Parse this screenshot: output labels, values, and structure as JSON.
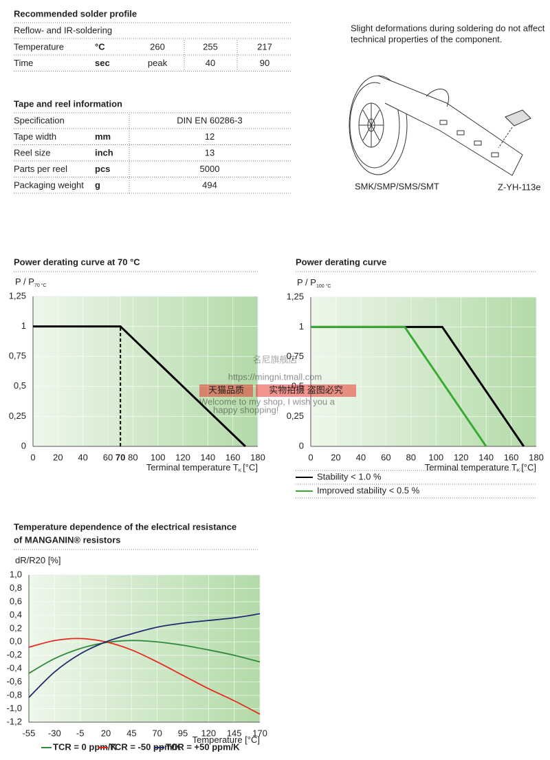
{
  "solder_profile": {
    "title": "Recommended solder profile",
    "subtitle": "Reflow- and IR-soldering",
    "rows": [
      [
        "Temperature",
        "°C",
        260,
        255,
        217
      ],
      [
        "Time",
        "sec",
        "peak",
        40,
        90
      ]
    ]
  },
  "tape_reel": {
    "title": "Tape and reel information",
    "rows": [
      {
        "label": "Specification",
        "value": "DIN EN 60286-3"
      },
      {
        "label": "Tape width",
        "unit": "mm",
        "value": 12
      },
      {
        "label": "Reel size",
        "unit": "inch",
        "value": 13
      },
      {
        "label": "Parts per reel",
        "unit": "pcs",
        "value": 5000
      },
      {
        "label": "Packaging weight",
        "unit": "g",
        "value": 494
      }
    ]
  },
  "reel_note": [
    "Slight deformations during soldering do not affect",
    "technical properties of the component."
  ],
  "reel_labels": [
    "SMK/SMP/SMS/SMT",
    "Z-YH-113e"
  ],
  "watermark": {
    "shop": "名尼旗舰店",
    "url": "https://mingni.tmall.com",
    "badge": "天猫品质",
    "notice": "实物拍摄 盗图必究",
    "welcome": [
      "Welcome to my shop, I wish you a",
      "happy shopping!"
    ]
  },
  "chart_data": [
    {
      "type": "line",
      "title": [
        "Power derating curve at 70 °C"
      ],
      "y_label": "P / P",
      "y_label_sub": "70 °C",
      "x_label": "Terminal temperature T",
      "x_label_sub": "K",
      "x_label_unit": "[°C]",
      "xlim": [
        0,
        180
      ],
      "xticks": [
        0,
        20,
        40,
        60,
        70,
        80,
        100,
        120,
        140,
        160,
        180
      ],
      "highlight_x": 70,
      "ylim": [
        0,
        1.25
      ],
      "yticks": [
        0,
        {
          "value": 0.25,
          "label": "0,25"
        },
        {
          "value": 0.5,
          "label": "0,5"
        },
        {
          "value": 0.75,
          "label": "0,75"
        },
        1,
        {
          "value": 1.25,
          "label": "1,25"
        }
      ],
      "grid": true,
      "series": [
        {
          "color": "#000000",
          "x": [
            0,
            70,
            170
          ],
          "values": [
            1,
            1,
            0
          ]
        }
      ]
    },
    {
      "type": "line",
      "title": [
        "Power derating curve"
      ],
      "y_label": "P / P",
      "y_label_sub": "100 °C",
      "x_label": "Terminal temperature T",
      "x_label_sub": "K",
      "x_label_unit": "[°C]",
      "xlim": [
        0,
        180
      ],
      "xticks": [
        0,
        20,
        40,
        60,
        80,
        100,
        120,
        140,
        160,
        180
      ],
      "ylim": [
        0,
        1.25
      ],
      "yticks": [
        0,
        {
          "value": 0.25,
          "label": "0,25"
        },
        {
          "value": 0.5,
          "label": "0,5"
        },
        {
          "value": 0.75,
          "label": "0,75"
        },
        1,
        {
          "value": 1.25,
          "label": "1,25"
        }
      ],
      "grid": true,
      "legend": "bottom",
      "series": [
        {
          "name": "Stability < 1.0 %",
          "color": "#000000",
          "x": [
            0,
            105,
            170
          ],
          "values": [
            1,
            1,
            0
          ]
        },
        {
          "name": "Improved stability < 0.5 %",
          "color": "#3aaa35",
          "x": [
            0,
            75,
            140
          ],
          "values": [
            1,
            1,
            0
          ]
        }
      ]
    },
    {
      "type": "line",
      "title": [
        "Temperature dependence of the electrical resistance",
        "of MANGANIN® resistors"
      ],
      "y_label": "dR/R20 [%]",
      "x_label": "Temperature [°C]",
      "xlim": [
        -55,
        170
      ],
      "xticks": [
        -55,
        -30,
        -5,
        20,
        45,
        70,
        95,
        120,
        145,
        170
      ],
      "ylim": [
        -1.2,
        1.0
      ],
      "yticks": [
        {
          "value": -1.2,
          "label": "-1,2"
        },
        {
          "value": -1.0,
          "label": "-1,0"
        },
        {
          "value": -0.8,
          "label": "-0,8"
        },
        {
          "value": -0.6,
          "label": "-0,6"
        },
        {
          "value": -0.4,
          "label": "-0,4"
        },
        {
          "value": -0.2,
          "label": "-0,2"
        },
        {
          "value": 0,
          "label": "0,0"
        },
        {
          "value": 0.2,
          "label": "0,2"
        },
        {
          "value": 0.4,
          "label": "0,4"
        },
        {
          "value": 0.6,
          "label": "0,6"
        },
        {
          "value": 0.8,
          "label": "0,8"
        },
        {
          "value": 1.0,
          "label": "1,0"
        }
      ],
      "grid": true,
      "smooth": true,
      "legend": "bottom",
      "series": [
        {
          "name": "TCR = 0 ppm/K",
          "color": "#2e8b3a",
          "x": [
            -55,
            -30,
            -5,
            20,
            45,
            70,
            95,
            120,
            145,
            170
          ],
          "values": [
            -0.47,
            -0.25,
            -0.1,
            -0.01,
            0.02,
            0.0,
            -0.05,
            -0.12,
            -0.2,
            -0.3
          ]
        },
        {
          "name": "TCR = -50 ppm/K",
          "color": "#e8281e",
          "x": [
            -55,
            -30,
            -5,
            20,
            45,
            70,
            95,
            120,
            145,
            170
          ],
          "values": [
            -0.08,
            0.02,
            0.05,
            0.0,
            -0.12,
            -0.3,
            -0.5,
            -0.7,
            -0.88,
            -1.08
          ]
        },
        {
          "name": "TCR = +50 ppm/K",
          "color": "#1f2a6e",
          "x": [
            -55,
            -30,
            -5,
            20,
            45,
            70,
            95,
            120,
            145,
            170
          ],
          "values": [
            -0.83,
            -0.45,
            -0.18,
            0.0,
            0.12,
            0.22,
            0.28,
            0.32,
            0.36,
            0.42
          ]
        }
      ]
    }
  ]
}
